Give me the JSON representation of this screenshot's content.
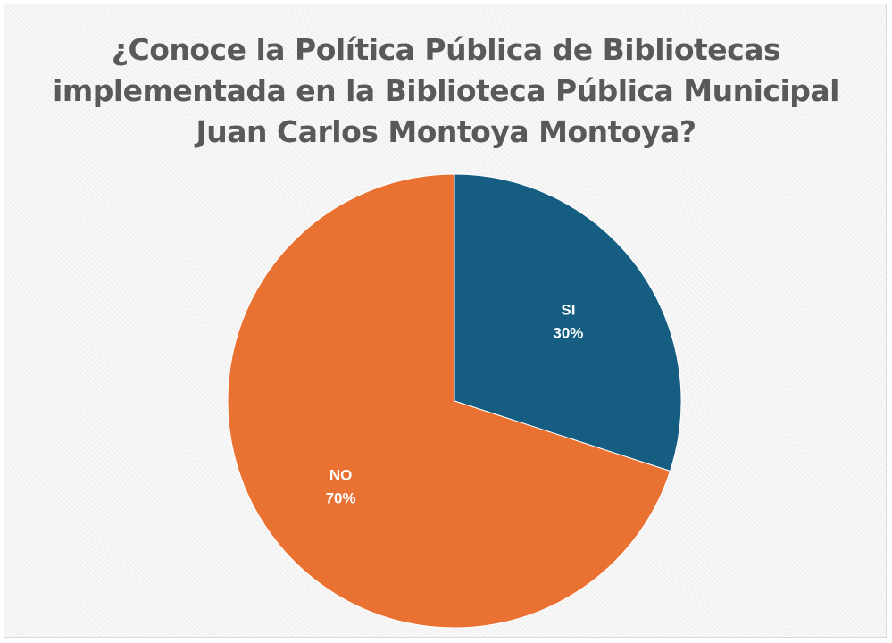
{
  "chart_data": {
    "type": "pie",
    "title_lines": [
      "¿Conoce la Política Pública de Bibliotecas",
      "implementada en la Biblioteca Pública Municipal",
      "Juan Carlos Montoya Montoya?"
    ],
    "slices": [
      {
        "name": "SI",
        "value": 30,
        "label": "30%",
        "color": "#155e82"
      },
      {
        "name": "NO",
        "value": 70,
        "label": "70%",
        "color": "#e97132"
      }
    ],
    "start_angle_deg": 0,
    "direction": "clockwise",
    "legend": "none"
  }
}
